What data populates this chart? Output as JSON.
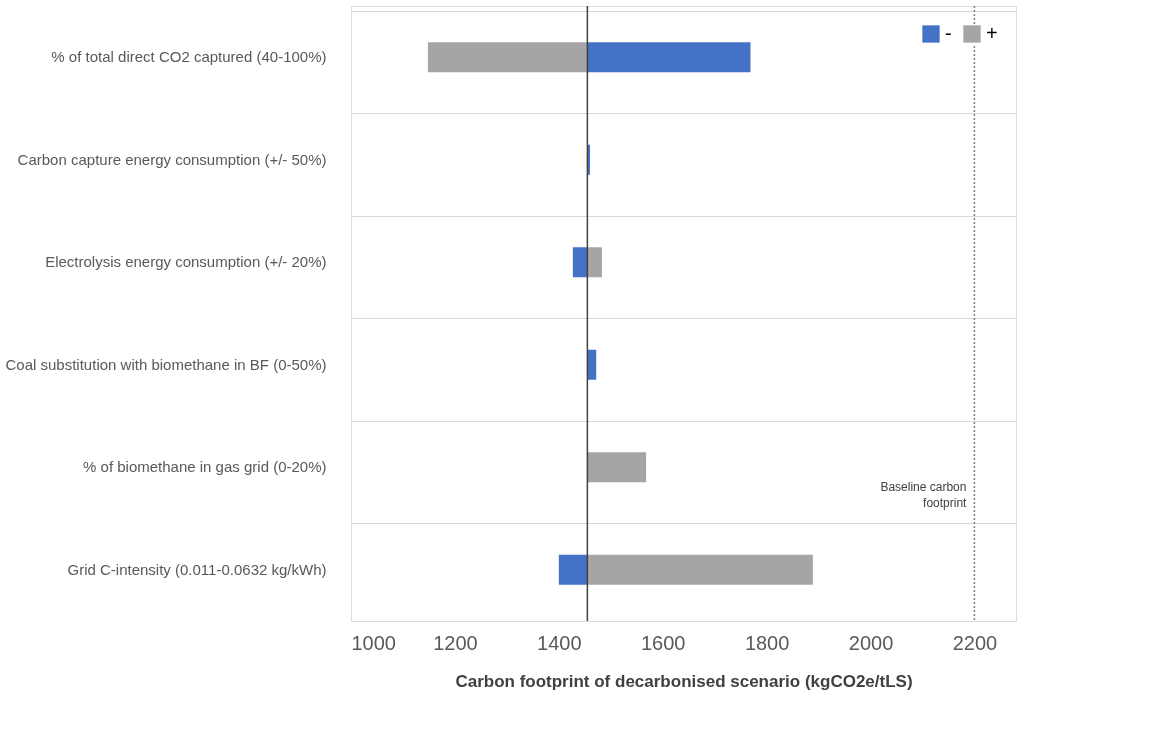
{
  "chart_data": {
    "type": "bar",
    "orientation": "horizontal",
    "xlabel": "Carbon footprint of decarbonised scenario (kgCO2e/tLS)",
    "categories": [
      "% of total direct CO2 captured (40-100%)",
      "Carbon capture energy consumption (+/- 50%)",
      "Electrolysis energy consumption (+/- 20%)",
      "Coal substitution with biomethane in BF (0-50%)",
      "% of biomethane in gas grid (0-20%)",
      "Grid C-intensity (0.011-0.0632 kg/kWh)"
    ],
    "series": [
      {
        "name": "-",
        "color": "#4472c4",
        "base": [
          1455,
          1455,
          1455,
          1455,
          null,
          1455
        ],
        "values": [
          314,
          5,
          -28,
          17,
          null,
          -55
        ]
      },
      {
        "name": "+",
        "color": "#a5a5a5",
        "base": [
          1455,
          null,
          1455,
          null,
          1455,
          1455
        ],
        "values": [
          -307,
          null,
          28,
          null,
          113,
          434
        ]
      }
    ],
    "xlim": [
      1000,
      2280
    ],
    "xticks": [
      1000,
      1200,
      1400,
      1600,
      1800,
      2000,
      2200
    ],
    "ref_lines": [
      {
        "axis": "x",
        "value": 1455,
        "color": "#404040",
        "line_style": "solid"
      },
      {
        "axis": "x",
        "value": 2200,
        "label": "Baseline carbon footprint",
        "line_style": "dotted",
        "color": "#7f7f7f"
      }
    ],
    "grid": "y",
    "legend": "top right"
  }
}
